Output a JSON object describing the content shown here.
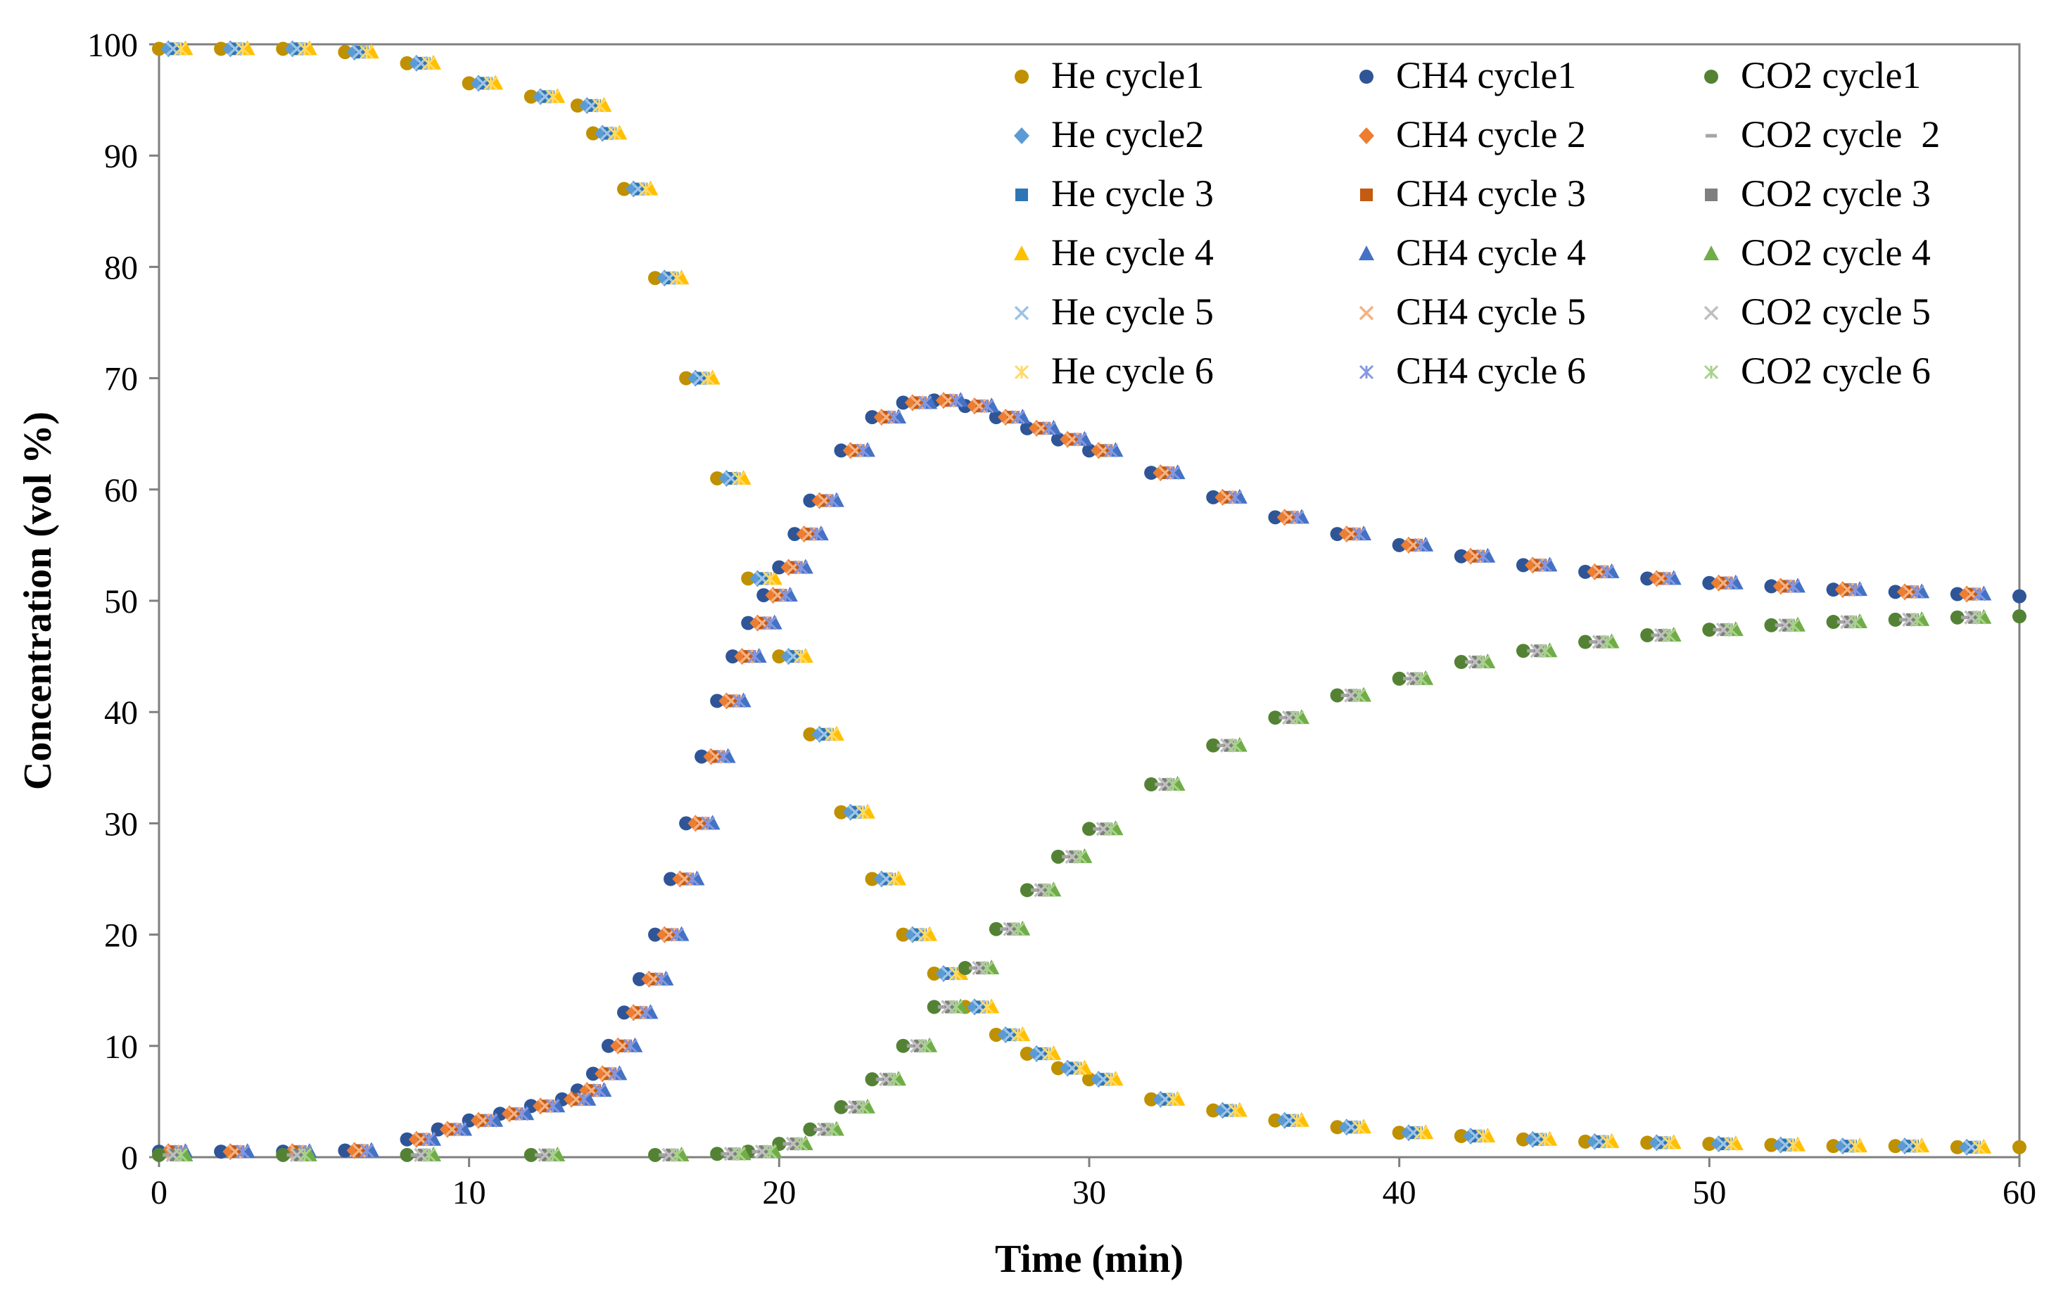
{
  "chart_data": {
    "type": "scatter",
    "title": "",
    "xlabel": "Time (min)",
    "ylabel": "Concentration (vol %)",
    "xlim": [
      0,
      60
    ],
    "ylim": [
      0,
      100
    ],
    "xticks": [
      "0",
      "10",
      "20",
      "30",
      "40",
      "50",
      "60"
    ],
    "yticks": [
      "0",
      "10",
      "20",
      "30",
      "40",
      "50",
      "60",
      "70",
      "80",
      "90",
      "100"
    ],
    "grid": false,
    "legend_position": "top-right",
    "profiles": {
      "He": {
        "x": [
          0,
          2,
          4,
          6,
          8,
          10,
          12,
          13.5,
          14,
          15,
          16,
          17,
          18,
          19,
          20,
          21,
          22,
          23,
          24,
          25,
          26,
          27,
          28,
          29,
          30,
          32,
          34,
          36,
          38,
          40,
          42,
          44,
          46,
          48,
          50,
          52,
          54,
          56,
          58,
          60
        ],
        "y": [
          99.6,
          99.6,
          99.6,
          99.3,
          98.3,
          96.5,
          95.3,
          94.5,
          92,
          87,
          79,
          70,
          61,
          52,
          45,
          38,
          31,
          25,
          20,
          16.5,
          13.5,
          11,
          9.3,
          8,
          7,
          5.2,
          4.2,
          3.3,
          2.7,
          2.2,
          1.9,
          1.6,
          1.4,
          1.3,
          1.2,
          1.1,
          1.0,
          1.0,
          0.9,
          0.9
        ]
      },
      "CH4": {
        "x": [
          0,
          2,
          4,
          6,
          8,
          9,
          10,
          11,
          12,
          13,
          13.5,
          14,
          14.5,
          15,
          15.5,
          16,
          16.5,
          17,
          17.5,
          18,
          18.5,
          19,
          19.5,
          20,
          20.5,
          21,
          22,
          23,
          24,
          25,
          26,
          27,
          28,
          29,
          30,
          32,
          34,
          36,
          38,
          40,
          42,
          44,
          46,
          48,
          50,
          52,
          54,
          56,
          58,
          60
        ],
        "y": [
          0.5,
          0.5,
          0.5,
          0.6,
          1.6,
          2.5,
          3.3,
          3.9,
          4.6,
          5.2,
          6.0,
          7.5,
          10,
          13,
          16,
          20,
          25,
          30,
          36,
          41,
          45,
          48,
          50.5,
          53,
          56,
          59,
          63.5,
          66.5,
          67.8,
          68,
          67.5,
          66.5,
          65.5,
          64.5,
          63.5,
          61.5,
          59.3,
          57.5,
          56,
          55,
          54,
          53.2,
          52.6,
          52,
          51.6,
          51.3,
          51,
          50.8,
          50.6,
          50.4
        ]
      },
      "CO2": {
        "x": [
          0,
          4,
          8,
          12,
          16,
          18,
          19,
          20,
          21,
          22,
          23,
          24,
          25,
          26,
          27,
          28,
          29,
          30,
          32,
          34,
          36,
          38,
          40,
          42,
          44,
          46,
          48,
          50,
          52,
          54,
          56,
          58,
          60
        ],
        "y": [
          0.2,
          0.2,
          0.2,
          0.2,
          0.2,
          0.3,
          0.5,
          1.2,
          2.5,
          4.5,
          7,
          10,
          13.5,
          17,
          20.5,
          24,
          27,
          29.5,
          33.5,
          37,
          39.5,
          41.5,
          43,
          44.5,
          45.5,
          46.3,
          46.9,
          47.4,
          47.8,
          48.1,
          48.3,
          48.5,
          48.6
        ]
      }
    },
    "series": [
      {
        "name": "He cycle1",
        "gas": "He",
        "marker": "circle",
        "color": "#BF9000",
        "jitter": 0.0
      },
      {
        "name": "He cycle2",
        "gas": "He",
        "marker": "diamond",
        "color": "#5B9BD5",
        "jitter": 0.3
      },
      {
        "name": "He cycle 3",
        "gas": "He",
        "marker": "square",
        "color": "#2E75B6",
        "jitter": 0.55
      },
      {
        "name": "He cycle 4",
        "gas": "He",
        "marker": "triangle",
        "color": "#FFC000",
        "jitter": 0.85
      },
      {
        "name": "He cycle 5",
        "gas": "He",
        "marker": "x",
        "color": "#9DC3E6",
        "jitter": 0.45
      },
      {
        "name": "He cycle 6",
        "gas": "He",
        "marker": "star",
        "color": "#FFD966",
        "jitter": 0.7
      },
      {
        "name": "CH4 cycle1",
        "gas": "CH4",
        "marker": "circle",
        "color": "#2F5597",
        "jitter": 0.0
      },
      {
        "name": "CH4 cycle 2",
        "gas": "CH4",
        "marker": "diamond",
        "color": "#ED7D31",
        "jitter": 0.3
      },
      {
        "name": "CH4 cycle 3",
        "gas": "CH4",
        "marker": "square",
        "color": "#C55A11",
        "jitter": 0.55
      },
      {
        "name": "CH4 cycle 4",
        "gas": "CH4",
        "marker": "triangle",
        "color": "#4472C4",
        "jitter": 0.85
      },
      {
        "name": "CH4 cycle 5",
        "gas": "CH4",
        "marker": "x",
        "color": "#F4B183",
        "jitter": 0.45
      },
      {
        "name": "CH4 cycle 6",
        "gas": "CH4",
        "marker": "star",
        "color": "#8497E0",
        "jitter": 0.7
      },
      {
        "name": "CO2 cycle1",
        "gas": "CO2",
        "marker": "circle",
        "color": "#548235",
        "jitter": 0.0
      },
      {
        "name": "CO2 cycle  2",
        "gas": "CO2",
        "marker": "dash",
        "color": "#A5A5A5",
        "jitter": 0.3
      },
      {
        "name": "CO2 cycle 3",
        "gas": "CO2",
        "marker": "square",
        "color": "#7F7F7F",
        "jitter": 0.55
      },
      {
        "name": "CO2 cycle 4",
        "gas": "CO2",
        "marker": "triangle",
        "color": "#70AD47",
        "jitter": 0.85
      },
      {
        "name": "CO2 cycle 5",
        "gas": "CO2",
        "marker": "x",
        "color": "#BFBFBF",
        "jitter": 0.45
      },
      {
        "name": "CO2 cycle 6",
        "gas": "CO2",
        "marker": "star",
        "color": "#A9D18E",
        "jitter": 0.7
      }
    ]
  }
}
